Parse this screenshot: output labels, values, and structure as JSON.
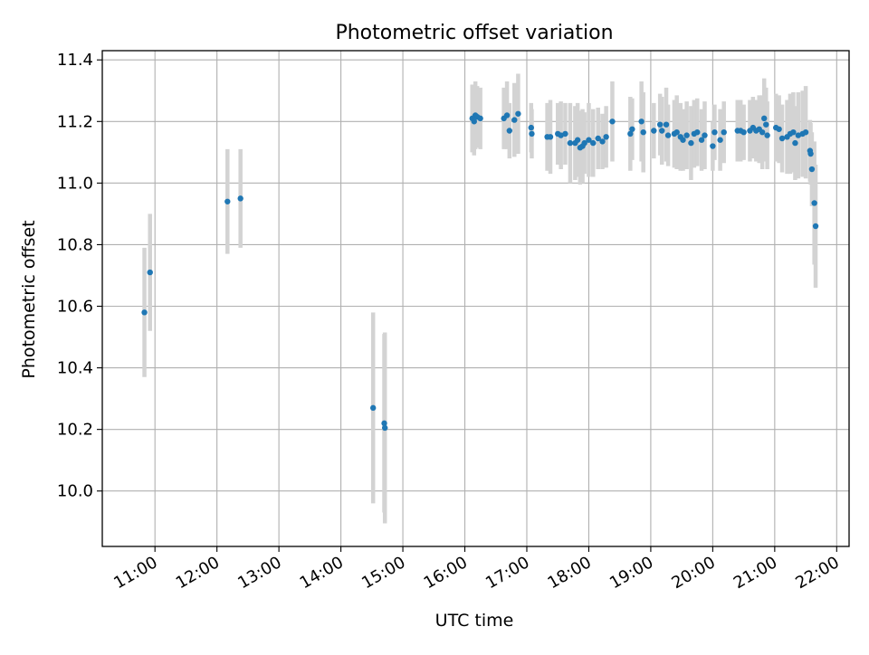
{
  "chart_data": {
    "type": "scatter",
    "title": "Photometric offset variation",
    "xlabel": "UTC time",
    "ylabel": "Photometric offset",
    "x_unit": "UTC hour of day",
    "xlim": [
      10.15,
      22.2
    ],
    "ylim": [
      9.82,
      11.43
    ],
    "x_ticks": [
      11,
      12,
      13,
      14,
      15,
      16,
      17,
      18,
      19,
      20,
      21,
      22
    ],
    "x_tick_labels": [
      "11:00",
      "12:00",
      "13:00",
      "14:00",
      "15:00",
      "16:00",
      "17:00",
      "18:00",
      "19:00",
      "20:00",
      "21:00",
      "22:00"
    ],
    "y_ticks": [
      10.0,
      10.2,
      10.4,
      10.6,
      10.8,
      11.0,
      11.2,
      11.4
    ],
    "y_tick_labels": [
      "10.0",
      "10.2",
      "10.4",
      "10.6",
      "10.8",
      "11.0",
      "11.2",
      "11.4"
    ],
    "grid": true,
    "colors": {
      "points": "#1f77b4",
      "errorbars": "#d3d3d3",
      "grid": "#b0b0b0"
    },
    "series": [
      {
        "points": [
          [
            10.83,
            10.58,
            0.21
          ],
          [
            10.92,
            10.71,
            0.19
          ],
          [
            12.17,
            10.94,
            0.17
          ],
          [
            12.38,
            10.95,
            0.16
          ],
          [
            14.52,
            10.27,
            0.31
          ],
          [
            14.7,
            10.22,
            0.29
          ],
          [
            14.71,
            10.205,
            0.31
          ],
          [
            16.12,
            11.21,
            0.11
          ],
          [
            16.15,
            11.2,
            0.11
          ],
          [
            16.17,
            11.22,
            0.11
          ],
          [
            16.2,
            11.215,
            0.1
          ],
          [
            16.25,
            11.21,
            0.1
          ],
          [
            16.63,
            11.21,
            0.1
          ],
          [
            16.68,
            11.22,
            0.11
          ],
          [
            16.72,
            11.17,
            0.09
          ],
          [
            16.8,
            11.205,
            0.12
          ],
          [
            16.86,
            11.225,
            0.13
          ],
          [
            17.07,
            11.18,
            0.08
          ],
          [
            17.08,
            11.16,
            0.08
          ],
          [
            17.33,
            11.15,
            0.11
          ],
          [
            17.38,
            11.15,
            0.12
          ],
          [
            17.5,
            11.16,
            0.1
          ],
          [
            17.55,
            11.155,
            0.11
          ],
          [
            17.62,
            11.16,
            0.1
          ],
          [
            17.7,
            11.13,
            0.13
          ],
          [
            17.78,
            11.13,
            0.12
          ],
          [
            17.82,
            11.14,
            0.12
          ],
          [
            17.86,
            11.115,
            0.12
          ],
          [
            17.9,
            11.12,
            0.12
          ],
          [
            17.93,
            11.13,
            0.1
          ],
          [
            18.0,
            11.14,
            0.12
          ],
          [
            18.07,
            11.13,
            0.11
          ],
          [
            18.15,
            11.145,
            0.1
          ],
          [
            18.22,
            11.135,
            0.09
          ],
          [
            18.28,
            11.15,
            0.1
          ],
          [
            18.38,
            11.2,
            0.13
          ],
          [
            18.67,
            11.16,
            0.12
          ],
          [
            18.7,
            11.175,
            0.1
          ],
          [
            18.85,
            11.2,
            0.13
          ],
          [
            18.88,
            11.165,
            0.13
          ],
          [
            19.05,
            11.17,
            0.09
          ],
          [
            19.15,
            11.19,
            0.1
          ],
          [
            19.18,
            11.17,
            0.11
          ],
          [
            19.25,
            11.19,
            0.12
          ],
          [
            19.28,
            11.155,
            0.1
          ],
          [
            19.38,
            11.16,
            0.11
          ],
          [
            19.42,
            11.165,
            0.12
          ],
          [
            19.48,
            11.15,
            0.11
          ],
          [
            19.52,
            11.14,
            0.1
          ],
          [
            19.58,
            11.155,
            0.11
          ],
          [
            19.65,
            11.13,
            0.12
          ],
          [
            19.7,
            11.16,
            0.11
          ],
          [
            19.75,
            11.165,
            0.11
          ],
          [
            19.82,
            11.14,
            0.1
          ],
          [
            19.87,
            11.155,
            0.11
          ],
          [
            20.0,
            11.12,
            0.08
          ],
          [
            20.03,
            11.165,
            0.09
          ],
          [
            20.12,
            11.14,
            0.1
          ],
          [
            20.18,
            11.165,
            0.1
          ],
          [
            20.4,
            11.17,
            0.1
          ],
          [
            20.45,
            11.17,
            0.1
          ],
          [
            20.5,
            11.165,
            0.09
          ],
          [
            20.6,
            11.17,
            0.1
          ],
          [
            20.65,
            11.18,
            0.1
          ],
          [
            20.7,
            11.17,
            0.1
          ],
          [
            20.75,
            11.175,
            0.11
          ],
          [
            20.8,
            11.165,
            0.12
          ],
          [
            20.83,
            11.21,
            0.13
          ],
          [
            20.86,
            11.19,
            0.12
          ],
          [
            20.88,
            11.155,
            0.11
          ],
          [
            21.02,
            11.18,
            0.11
          ],
          [
            21.07,
            11.175,
            0.11
          ],
          [
            21.12,
            11.145,
            0.11
          ],
          [
            21.2,
            11.15,
            0.12
          ],
          [
            21.25,
            11.16,
            0.13
          ],
          [
            21.3,
            11.165,
            0.13
          ],
          [
            21.33,
            11.13,
            0.12
          ],
          [
            21.38,
            11.155,
            0.14
          ],
          [
            21.45,
            11.16,
            0.14
          ],
          [
            21.5,
            11.165,
            0.15
          ],
          [
            21.57,
            11.105,
            0.1
          ],
          [
            21.58,
            11.095,
            0.1
          ],
          [
            21.6,
            11.045,
            0.12
          ],
          [
            21.64,
            10.935,
            0.2
          ],
          [
            21.66,
            10.86,
            0.2
          ]
        ]
      }
    ]
  }
}
